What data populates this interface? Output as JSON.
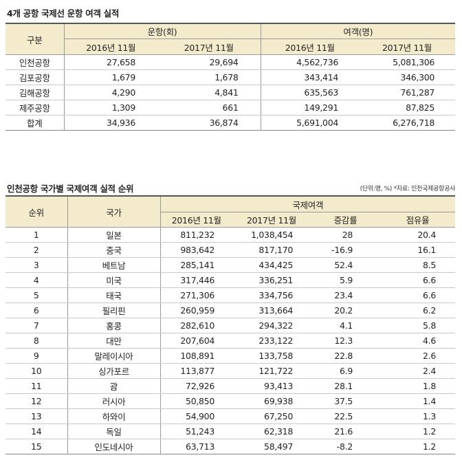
{
  "table1": {
    "title": "4개 공항 국제선 운항 여객 실적",
    "row_header": "구분",
    "group_headers": [
      "운항(회)",
      "여객(명)"
    ],
    "sub_headers": [
      "2016년 11월",
      "2017년 11월",
      "2016년 11월",
      "2017년 11월"
    ],
    "rows": [
      {
        "name": "인천공항",
        "v": [
          "27,658",
          "29,694",
          "4,562,736",
          "5,081,306"
        ]
      },
      {
        "name": "김포공항",
        "v": [
          "1,679",
          "1,678",
          "343,414",
          "346,300"
        ]
      },
      {
        "name": "김해공항",
        "v": [
          "4,290",
          "4,841",
          "635,563",
          "761,287"
        ]
      },
      {
        "name": "제주공항",
        "v": [
          "1,309",
          "661",
          "149,291",
          "87,825"
        ]
      },
      {
        "name": "합계",
        "v": [
          "34,936",
          "36,874",
          "5,691,004",
          "6,276,718"
        ]
      }
    ]
  },
  "table2": {
    "title": "인천공항 국가별 국제여객 실적 순위",
    "unit_note": "(단위:명, %) *자료: 인천국제공항공사",
    "headers": {
      "rank": "순위",
      "country": "국가",
      "group": "국제여객",
      "sub": [
        "2016년 11월",
        "2017년 11월",
        "증감률",
        "점유율"
      ]
    },
    "rows": [
      {
        "rank": "1",
        "country": "일본",
        "v": [
          "811,232",
          "1,038,454",
          "28",
          "20.4"
        ]
      },
      {
        "rank": "2",
        "country": "중국",
        "v": [
          "983,642",
          "817,170",
          "-16.9",
          "16.1"
        ]
      },
      {
        "rank": "3",
        "country": "베트남",
        "v": [
          "285,141",
          "434,425",
          "52.4",
          "8.5"
        ]
      },
      {
        "rank": "4",
        "country": "미국",
        "v": [
          "317,446",
          "336,251",
          "5.9",
          "6.6"
        ]
      },
      {
        "rank": "5",
        "country": "태국",
        "v": [
          "271,306",
          "334,756",
          "23.4",
          "6.6"
        ]
      },
      {
        "rank": "6",
        "country": "필리핀",
        "v": [
          "260,959",
          "313,664",
          "20.2",
          "6.2"
        ]
      },
      {
        "rank": "7",
        "country": "홍콩",
        "v": [
          "282,610",
          "294,322",
          "4.1",
          "5.8"
        ]
      },
      {
        "rank": "8",
        "country": "대만",
        "v": [
          "207,604",
          "233,122",
          "12.3",
          "4.6"
        ]
      },
      {
        "rank": "9",
        "country": "말레이시아",
        "v": [
          "108,891",
          "133,758",
          "22.8",
          "2.6"
        ]
      },
      {
        "rank": "10",
        "country": "싱가포르",
        "v": [
          "113,877",
          "121,722",
          "6.9",
          "2.4"
        ]
      },
      {
        "rank": "11",
        "country": "괌",
        "v": [
          "72,926",
          "93,413",
          "28.1",
          "1.8"
        ]
      },
      {
        "rank": "12",
        "country": "러시아",
        "v": [
          "50,850",
          "69,938",
          "37.5",
          "1.4"
        ]
      },
      {
        "rank": "13",
        "country": "하와이",
        "v": [
          "54,900",
          "67,250",
          "22.5",
          "1.3"
        ]
      },
      {
        "rank": "14",
        "country": "독일",
        "v": [
          "51,243",
          "62,318",
          "21.6",
          "1.2"
        ]
      },
      {
        "rank": "15",
        "country": "인도네시아",
        "v": [
          "63,713",
          "58,497",
          "-8.2",
          "1.2"
        ]
      }
    ]
  }
}
